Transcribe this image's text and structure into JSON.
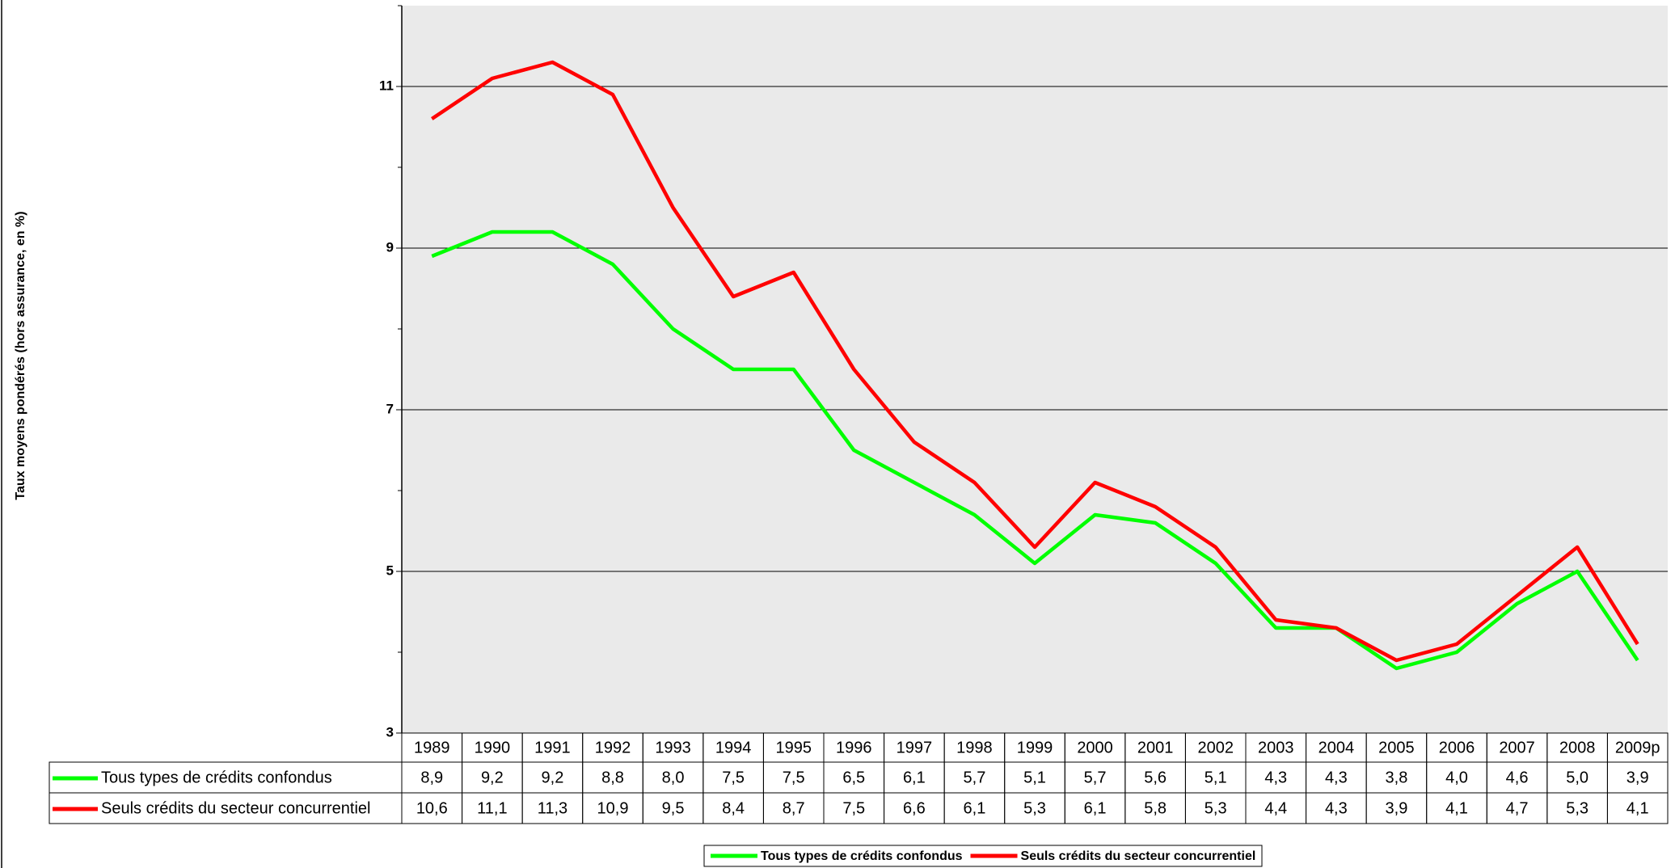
{
  "chart_data": {
    "type": "line",
    "y_label": "Taux moyens pondérés (hors assurance, en %)",
    "categories": [
      "1989",
      "1990",
      "1991",
      "1992",
      "1993",
      "1994",
      "1995",
      "1996",
      "1997",
      "1998",
      "1999",
      "2000",
      "2001",
      "2002",
      "2003",
      "2004",
      "2005",
      "2006",
      "2007",
      "2008",
      "2009p"
    ],
    "series": [
      {
        "name": "Tous types de crédits confondus",
        "color": "#00ff00",
        "values": [
          8.9,
          9.2,
          9.2,
          8.8,
          8.0,
          7.5,
          7.5,
          6.5,
          6.1,
          5.7,
          5.1,
          5.7,
          5.6,
          5.1,
          4.3,
          4.3,
          3.8,
          4.0,
          4.6,
          5.0,
          3.9
        ],
        "value_labels": [
          "8,9",
          "9,2",
          "9,2",
          "8,8",
          "8,0",
          "7,5",
          "7,5",
          "6,5",
          "6,1",
          "5,7",
          "5,1",
          "5,7",
          "5,6",
          "5,1",
          "4,3",
          "4,3",
          "3,8",
          "4,0",
          "4,6",
          "5,0",
          "3,9"
        ]
      },
      {
        "name": "Seuls crédits du secteur concurrentiel",
        "color": "#ff0000",
        "values": [
          10.6,
          11.1,
          11.3,
          10.9,
          9.5,
          8.4,
          8.7,
          7.5,
          6.6,
          6.1,
          5.3,
          6.1,
          5.8,
          5.3,
          4.4,
          4.3,
          3.9,
          4.1,
          4.7,
          5.3,
          4.1
        ],
        "value_labels": [
          "10,6",
          "11,1",
          "11,3",
          "10,9",
          "9,5",
          "8,4",
          "8,7",
          "7,5",
          "6,6",
          "6,1",
          "5,3",
          "6,1",
          "5,8",
          "5,3",
          "4,4",
          "4,3",
          "3,9",
          "4,1",
          "4,7",
          "5,3",
          "4,1"
        ]
      }
    ],
    "ylim": [
      3,
      12
    ],
    "yticks": [
      3,
      5,
      7,
      9,
      11
    ],
    "minor_yticks": [
      4,
      6,
      8,
      10,
      12
    ],
    "grid": true,
    "legend": "bottom",
    "plot_background": "#eaeaea"
  }
}
